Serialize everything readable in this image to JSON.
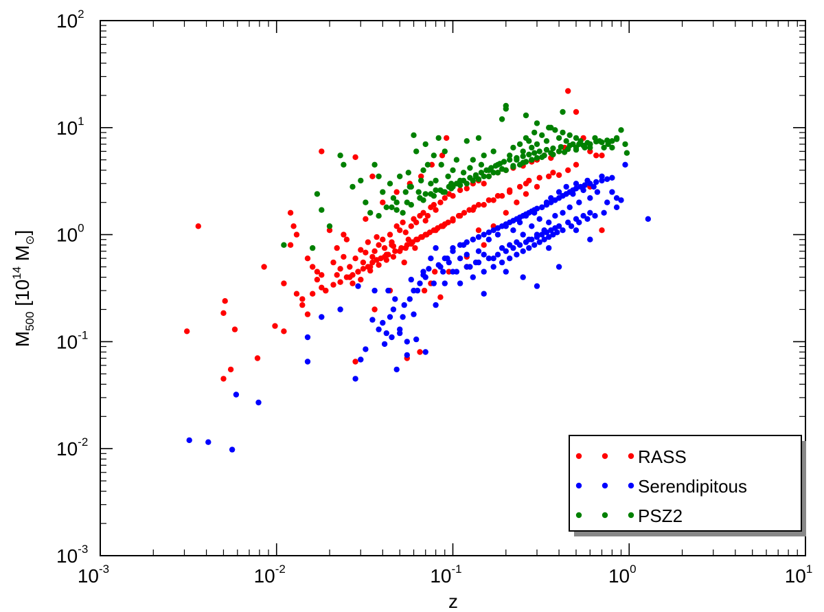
{
  "chart_data": {
    "type": "scatter",
    "xscale": "log",
    "yscale": "log",
    "xlim": [
      0.001,
      10
    ],
    "ylim": [
      0.001,
      100
    ],
    "x_ticks": [
      {
        "base": "10",
        "exp": "-3"
      },
      {
        "base": "10",
        "exp": "-2"
      },
      {
        "base": "10",
        "exp": "-1"
      },
      {
        "base": "10",
        "exp": "0"
      },
      {
        "base": "10",
        "exp": "1"
      }
    ],
    "y_ticks": [
      {
        "base": "10",
        "exp": "-3"
      },
      {
        "base": "10",
        "exp": "-2"
      },
      {
        "base": "10",
        "exp": "-1"
      },
      {
        "base": "10",
        "exp": "0"
      },
      {
        "base": "10",
        "exp": "1"
      },
      {
        "base": "10",
        "exp": "2"
      }
    ],
    "xlabel": "z",
    "ylabel": {
      "main": "M",
      "sub": "500",
      "rest": " [10",
      "exp": "14",
      "unit": " M",
      "unit_sub": "⊙",
      "close": "]"
    },
    "grid": false,
    "legend": {
      "position": "bottom-right"
    },
    "series": [
      {
        "name": "RASS",
        "color": "#ff0000",
        "x": [
          0.0031,
          0.0036,
          0.005,
          0.0051,
          0.005,
          0.0055,
          0.0058,
          0.0078,
          0.0085,
          0.0098,
          0.011,
          0.012,
          0.0125,
          0.013,
          0.014,
          0.015,
          0.016,
          0.017,
          0.018,
          0.019,
          0.02,
          0.021,
          0.022,
          0.023,
          0.024,
          0.025,
          0.026,
          0.027,
          0.028,
          0.029,
          0.03,
          0.031,
          0.032,
          0.033,
          0.034,
          0.035,
          0.036,
          0.037,
          0.038,
          0.04,
          0.041,
          0.042,
          0.044,
          0.045,
          0.046,
          0.048,
          0.05,
          0.052,
          0.054,
          0.056,
          0.058,
          0.06,
          0.062,
          0.065,
          0.068,
          0.07,
          0.072,
          0.075,
          0.078,
          0.08,
          0.085,
          0.09,
          0.095,
          0.1,
          0.11,
          0.12,
          0.13,
          0.14,
          0.15,
          0.16,
          0.18,
          0.2,
          0.22,
          0.25,
          0.28,
          0.3,
          0.33,
          0.36,
          0.4,
          0.43,
          0.45,
          0.5,
          0.55,
          0.6,
          0.65,
          0.7,
          0.018,
          0.028,
          0.035,
          0.045,
          0.055,
          0.065,
          0.075,
          0.085,
          0.095,
          0.12,
          0.15,
          0.17,
          0.2,
          0.23,
          0.26,
          0.3,
          0.35,
          0.4,
          0.45,
          0.5,
          0.018,
          0.022,
          0.026,
          0.03,
          0.034,
          0.038,
          0.042,
          0.046,
          0.05,
          0.054,
          0.058,
          0.062,
          0.066,
          0.07,
          0.074,
          0.078,
          0.082,
          0.086,
          0.09,
          0.1,
          0.11,
          0.13,
          0.15,
          0.17,
          0.19,
          0.21,
          0.24,
          0.27,
          0.014,
          0.016,
          0.019,
          0.021,
          0.023,
          0.025,
          0.027,
          0.029,
          0.031,
          0.033,
          0.035,
          0.037,
          0.039,
          0.041,
          0.043,
          0.047,
          0.051,
          0.055,
          0.059,
          0.063,
          0.067,
          0.071,
          0.08,
          0.088,
          0.094,
          0.1,
          0.108,
          0.116,
          0.124,
          0.132,
          0.14,
          0.16,
          0.18,
          0.21,
          0.26,
          0.31,
          0.37,
          0.011,
          0.012,
          0.013,
          0.015,
          0.017,
          0.024,
          0.032,
          0.04,
          0.048,
          0.057,
          0.066,
          0.076,
          0.087,
          0.092,
          0.028,
          0.036,
          0.044,
          0.053,
          0.061,
          0.069,
          0.079,
          0.12,
          0.14,
          0.6,
          0.7
        ],
        "y": [
          0.125,
          1.2,
          0.045,
          0.24,
          0.185,
          0.055,
          0.13,
          0.07,
          0.5,
          0.14,
          0.125,
          1.6,
          1.2,
          0.28,
          0.22,
          0.18,
          0.5,
          0.38,
          0.42,
          0.3,
          1.1,
          0.55,
          0.75,
          0.48,
          0.62,
          0.9,
          0.4,
          0.35,
          0.6,
          0.45,
          0.72,
          0.55,
          0.68,
          0.85,
          0.5,
          0.62,
          0.7,
          0.95,
          0.8,
          0.9,
          0.75,
          0.65,
          1.0,
          0.85,
          0.78,
          1.2,
          1.1,
          1.3,
          1.05,
          0.9,
          1.2,
          1.4,
          1.3,
          1.5,
          1.6,
          1.35,
          1.5,
          1.8,
          1.9,
          1.7,
          2.0,
          2.2,
          2.4,
          2.3,
          2.6,
          2.7,
          3.0,
          3.2,
          3.0,
          3.5,
          3.8,
          4.0,
          4.2,
          4.4,
          4.8,
          5.0,
          5.5,
          5.2,
          6.0,
          6.5,
          22,
          14,
          8,
          6,
          5.5,
          1.1,
          6.0,
          5.3,
          3.5,
          0.8,
          0.07,
          0.08,
          0.35,
          0.26,
          0.45,
          0.62,
          0.8,
          1.2,
          1.6,
          2.0,
          2.4,
          2.8,
          3.5,
          3.6,
          4.0,
          4.5,
          0.32,
          0.42,
          0.5,
          0.38,
          0.46,
          0.52,
          0.58,
          0.62,
          0.7,
          0.75,
          0.82,
          0.9,
          0.95,
          1.0,
          1.05,
          1.1,
          1.15,
          1.2,
          1.25,
          1.35,
          1.5,
          1.7,
          1.9,
          2.1,
          2.3,
          2.5,
          2.8,
          3.2,
          0.25,
          0.28,
          0.3,
          0.34,
          0.36,
          0.4,
          0.42,
          0.45,
          0.48,
          0.5,
          0.55,
          0.58,
          0.6,
          0.62,
          0.65,
          0.7,
          0.75,
          0.8,
          0.85,
          0.9,
          0.95,
          1.0,
          1.1,
          1.2,
          1.3,
          1.4,
          1.5,
          1.6,
          1.7,
          1.8,
          1.9,
          2.1,
          2.3,
          2.6,
          3.0,
          3.4,
          3.8,
          0.35,
          0.8,
          1.0,
          0.6,
          0.45,
          1.0,
          1.4,
          2.0,
          2.5,
          3.0,
          3.5,
          4.5,
          5.5,
          8.0,
          0.065,
          0.2,
          0.3,
          0.55,
          0.75,
          0.3,
          0.45,
          0.5,
          1.1,
          2.8,
          5.5
        ]
      },
      {
        "name": "Serendipitous",
        "color": "#0000ff",
        "x": [
          0.0032,
          0.0041,
          0.0056,
          0.0059,
          0.0079,
          0.015,
          0.015,
          0.018,
          0.023,
          0.028,
          0.029,
          0.032,
          0.036,
          0.04,
          0.042,
          0.044,
          0.046,
          0.048,
          0.05,
          0.052,
          0.055,
          0.057,
          0.06,
          0.062,
          0.065,
          0.068,
          0.07,
          0.075,
          0.08,
          0.085,
          0.09,
          0.095,
          0.1,
          0.105,
          0.11,
          0.115,
          0.12,
          0.125,
          0.13,
          0.135,
          0.14,
          0.15,
          0.16,
          0.17,
          0.18,
          0.19,
          0.2,
          0.21,
          0.22,
          0.23,
          0.24,
          0.25,
          0.26,
          0.27,
          0.28,
          0.29,
          0.3,
          0.31,
          0.32,
          0.33,
          0.34,
          0.35,
          0.36,
          0.38,
          0.4,
          0.42,
          0.44,
          0.46,
          0.48,
          0.5,
          0.52,
          0.55,
          0.58,
          0.6,
          0.63,
          0.66,
          0.7,
          0.75,
          0.8,
          0.85,
          0.9,
          0.95,
          1.28,
          0.09,
          0.1,
          0.11,
          0.12,
          0.13,
          0.14,
          0.15,
          0.16,
          0.17,
          0.18,
          0.19,
          0.2,
          0.21,
          0.22,
          0.23,
          0.24,
          0.25,
          0.26,
          0.27,
          0.28,
          0.29,
          0.3,
          0.32,
          0.34,
          0.36,
          0.38,
          0.4,
          0.42,
          0.44,
          0.46,
          0.48,
          0.5,
          0.53,
          0.56,
          0.6,
          0.65,
          0.7,
          0.75,
          0.8,
          0.1,
          0.12,
          0.14,
          0.16,
          0.18,
          0.2,
          0.22,
          0.24,
          0.26,
          0.28,
          0.3,
          0.32,
          0.34,
          0.36,
          0.38,
          0.4,
          0.45,
          0.5,
          0.55,
          0.6,
          0.11,
          0.13,
          0.15,
          0.17,
          0.19,
          0.21,
          0.23,
          0.25,
          0.27,
          0.29,
          0.31,
          0.33,
          0.35,
          0.37,
          0.39,
          0.42,
          0.47,
          0.52,
          0.58,
          0.64,
          0.72,
          0.85,
          0.4,
          0.6,
          0.2,
          0.3,
          0.15,
          0.25,
          0.35,
          0.5,
          0.07,
          0.08,
          0.055,
          0.06,
          0.045,
          0.05,
          0.03,
          0.035,
          0.038,
          0.041,
          0.043,
          0.047,
          0.053,
          0.058,
          0.063,
          0.068,
          0.073,
          0.078,
          0.083,
          0.088,
          0.093
        ],
        "y": [
          0.012,
          0.0115,
          0.0098,
          0.032,
          0.027,
          0.065,
          0.11,
          0.17,
          0.2,
          0.045,
          0.33,
          0.085,
          0.3,
          0.15,
          0.12,
          0.17,
          0.2,
          0.055,
          0.12,
          0.17,
          0.1,
          0.25,
          0.3,
          0.105,
          0.35,
          0.45,
          0.4,
          0.6,
          0.75,
          0.5,
          0.35,
          0.55,
          0.7,
          0.45,
          0.6,
          0.8,
          0.65,
          0.5,
          0.9,
          0.55,
          0.7,
          0.65,
          0.9,
          0.6,
          1.0,
          0.75,
          1.2,
          0.8,
          1.1,
          0.85,
          1.3,
          1.0,
          1.5,
          0.9,
          1.2,
          1.6,
          1.0,
          1.4,
          1.8,
          1.1,
          2.0,
          1.3,
          2.2,
          1.5,
          2.5,
          1.6,
          2.8,
          1.8,
          2.4,
          3.0,
          2.0,
          2.6,
          3.2,
          2.2,
          2.8,
          2.5,
          3.5,
          2.0,
          2.5,
          2.2,
          2.1,
          4.5,
          1.4,
          0.6,
          0.75,
          0.8,
          0.85,
          0.9,
          0.95,
          1.0,
          1.05,
          1.1,
          1.15,
          1.2,
          1.25,
          1.3,
          1.35,
          1.4,
          1.45,
          1.5,
          1.55,
          1.6,
          1.65,
          1.7,
          1.75,
          1.8,
          1.9,
          2.0,
          2.1,
          2.2,
          2.3,
          2.4,
          2.5,
          2.6,
          2.7,
          2.8,
          2.9,
          3.0,
          3.1,
          3.2,
          3.3,
          3.4,
          0.45,
          0.5,
          0.55,
          0.6,
          0.65,
          0.7,
          0.75,
          0.8,
          0.85,
          0.9,
          0.95,
          1.0,
          1.05,
          1.1,
          1.15,
          1.2,
          1.3,
          1.4,
          1.5,
          1.6,
          0.35,
          0.4,
          0.45,
          0.5,
          0.55,
          0.6,
          0.65,
          0.7,
          0.75,
          0.8,
          0.85,
          0.9,
          0.95,
          1.0,
          1.05,
          1.1,
          1.2,
          1.3,
          1.4,
          1.5,
          1.6,
          1.8,
          0.5,
          0.9,
          0.45,
          0.33,
          0.28,
          0.4,
          0.75,
          1.1,
          0.08,
          0.22,
          0.075,
          0.18,
          0.11,
          0.13,
          0.068,
          0.16,
          0.13,
          0.095,
          0.3,
          0.25,
          0.22,
          0.38,
          0.3,
          0.42,
          0.48,
          0.35,
          0.52,
          0.45,
          0.6
        ]
      },
      {
        "name": "PSZ2",
        "color": "#008000",
        "x": [
          0.011,
          0.016,
          0.017,
          0.018,
          0.02,
          0.023,
          0.024,
          0.027,
          0.03,
          0.032,
          0.034,
          0.036,
          0.038,
          0.04,
          0.042,
          0.044,
          0.046,
          0.048,
          0.05,
          0.052,
          0.054,
          0.056,
          0.058,
          0.06,
          0.062,
          0.064,
          0.066,
          0.068,
          0.07,
          0.072,
          0.075,
          0.078,
          0.08,
          0.083,
          0.086,
          0.09,
          0.094,
          0.098,
          0.1,
          0.105,
          0.11,
          0.115,
          0.12,
          0.125,
          0.13,
          0.135,
          0.14,
          0.145,
          0.15,
          0.16,
          0.17,
          0.18,
          0.19,
          0.2,
          0.21,
          0.22,
          0.23,
          0.24,
          0.25,
          0.26,
          0.27,
          0.28,
          0.29,
          0.3,
          0.32,
          0.34,
          0.36,
          0.38,
          0.4,
          0.42,
          0.44,
          0.46,
          0.48,
          0.5,
          0.53,
          0.56,
          0.6,
          0.64,
          0.68,
          0.72,
          0.76,
          0.8,
          0.85,
          0.9,
          0.95,
          0.97,
          0.2,
          0.26,
          0.3,
          0.35,
          0.42,
          0.057,
          0.08,
          0.07,
          0.065,
          0.09,
          0.1,
          0.12,
          0.14,
          0.16,
          0.18,
          0.2,
          0.22,
          0.24,
          0.26,
          0.28,
          0.3,
          0.33,
          0.36,
          0.4,
          0.45,
          0.5,
          0.55,
          0.6,
          0.7,
          0.8,
          0.045,
          0.055,
          0.065,
          0.075,
          0.085,
          0.095,
          0.105,
          0.115,
          0.125,
          0.135,
          0.145,
          0.155,
          0.165,
          0.175,
          0.185,
          0.195,
          0.21,
          0.23,
          0.25,
          0.27,
          0.29,
          0.31,
          0.34,
          0.37,
          0.41,
          0.46,
          0.52,
          0.58,
          0.65,
          0.75,
          0.85,
          0.038,
          0.048,
          0.058,
          0.068,
          0.078,
          0.088,
          0.098,
          0.11,
          0.13,
          0.15,
          0.17,
          0.19,
          0.22,
          0.25,
          0.28,
          0.32,
          0.37,
          0.43,
          0.5,
          0.6
        ],
        "y": [
          0.8,
          0.75,
          2.4,
          1.7,
          1.2,
          5.5,
          4.5,
          2.8,
          3.2,
          2.0,
          1.6,
          4.5,
          3.5,
          2.5,
          1.8,
          3.0,
          2.2,
          2.0,
          3.5,
          1.6,
          2.5,
          3.8,
          2.8,
          8.5,
          6.0,
          2.5,
          3.2,
          4.0,
          7.0,
          4.5,
          3.0,
          5.5,
          3.2,
          8.0,
          4.5,
          6.0,
          3.5,
          3.0,
          4.0,
          5.0,
          3.2,
          3.8,
          7.5,
          4.2,
          5.0,
          3.5,
          8.0,
          4.5,
          5.5,
          4.0,
          6.0,
          4.5,
          12,
          15,
          5.5,
          6.5,
          5.0,
          7.0,
          6.0,
          8.0,
          7.5,
          6.5,
          9.0,
          7.0,
          8.5,
          7.5,
          10,
          9.5,
          8.0,
          9.0,
          7.5,
          8.5,
          7.0,
          8.0,
          7.5,
          6.5,
          7.0,
          8.0,
          7.5,
          6.5,
          7.0,
          6.5,
          8.0,
          9.5,
          7.0,
          5.8,
          16,
          13,
          11,
          10,
          14,
          2.8,
          2.6,
          2.4,
          2.2,
          2.5,
          2.8,
          3.0,
          3.3,
          3.5,
          3.8,
          4.0,
          4.3,
          4.5,
          4.8,
          5.0,
          5.2,
          5.5,
          5.8,
          6.0,
          6.3,
          6.5,
          6.8,
          7.0,
          7.3,
          7.5,
          1.8,
          2.0,
          2.2,
          2.4,
          2.6,
          2.8,
          3.0,
          3.2,
          3.4,
          3.6,
          3.8,
          4.0,
          4.2,
          4.4,
          4.6,
          4.8,
          5.0,
          5.2,
          5.4,
          5.6,
          5.8,
          6.0,
          6.2,
          6.4,
          6.6,
          6.8,
          7.0,
          7.2,
          7.4,
          7.6,
          7.8,
          1.5,
          1.7,
          1.9,
          2.1,
          2.3,
          2.5,
          2.7,
          2.9,
          3.2,
          3.5,
          3.8,
          4.1,
          4.4,
          4.7,
          5.0,
          5.3,
          5.6,
          5.9,
          6.2,
          6.5
        ]
      }
    ]
  }
}
